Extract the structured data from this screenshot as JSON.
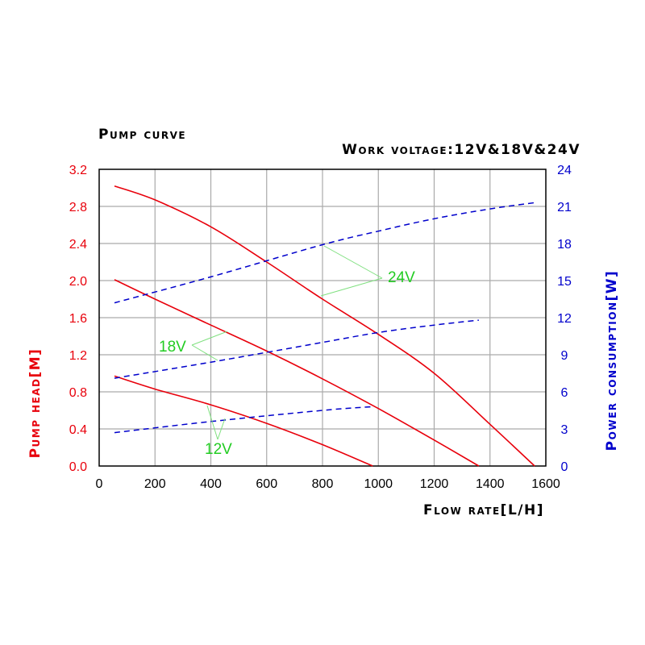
{
  "chart_data": {
    "type": "line",
    "title": "Pump curve",
    "subtitle": "Work voltage:12V&18V&24V",
    "xlabel": "Flow rate[L/H]",
    "ylabel_left": "Pump head[M]",
    "ylabel_right": "Power consumption[W]",
    "xlim": [
      0,
      1600
    ],
    "ylim_left": [
      0,
      3.2
    ],
    "ylim_right": [
      0,
      24
    ],
    "grid": true,
    "x_ticks": [
      "0",
      "200",
      "400",
      "600",
      "800",
      "1000",
      "1200",
      "1400",
      "1600"
    ],
    "y_left_ticks": [
      "0.0",
      "0.4",
      "0.8",
      "1.2",
      "1.6",
      "2.0",
      "2.4",
      "2.8",
      "3.2"
    ],
    "y_right_ticks": [
      "0",
      "3",
      "6",
      "9",
      "12",
      "15",
      "18",
      "21",
      "24"
    ],
    "colors": {
      "head": "#e8000b",
      "power": "#0000cc",
      "annotation": "#22cc22",
      "grid": "#aaaaaa"
    },
    "head_series": [
      {
        "name": "12V",
        "x": [
          55,
          200,
          400,
          600,
          800,
          980
        ],
        "y": [
          0.97,
          0.83,
          0.66,
          0.46,
          0.23,
          0.0
        ]
      },
      {
        "name": "18V",
        "x": [
          55,
          200,
          400,
          600,
          800,
          1000,
          1200,
          1360
        ],
        "y": [
          2.01,
          1.8,
          1.52,
          1.24,
          0.94,
          0.62,
          0.28,
          0.0
        ]
      },
      {
        "name": "24V",
        "x": [
          55,
          200,
          400,
          600,
          800,
          1000,
          1200,
          1400,
          1560
        ],
        "y": [
          3.02,
          2.87,
          2.58,
          2.2,
          1.8,
          1.42,
          1.0,
          0.45,
          0.0
        ]
      }
    ],
    "power_series": [
      {
        "name": "12V",
        "x": [
          55,
          400,
          800,
          980
        ],
        "y": [
          2.7,
          3.6,
          4.5,
          4.8
        ]
      },
      {
        "name": "18V",
        "x": [
          55,
          400,
          800,
          1000,
          1200,
          1360
        ],
        "y": [
          7.1,
          8.4,
          10.0,
          10.8,
          11.4,
          11.8
        ]
      },
      {
        "name": "24V",
        "x": [
          55,
          400,
          800,
          1000,
          1200,
          1400,
          1560
        ],
        "y": [
          13.2,
          15.3,
          17.9,
          19.0,
          20.0,
          20.8,
          21.3
        ]
      }
    ],
    "annotations": [
      {
        "text": "24V"
      },
      {
        "text": "18V"
      },
      {
        "text": "12V"
      }
    ]
  }
}
